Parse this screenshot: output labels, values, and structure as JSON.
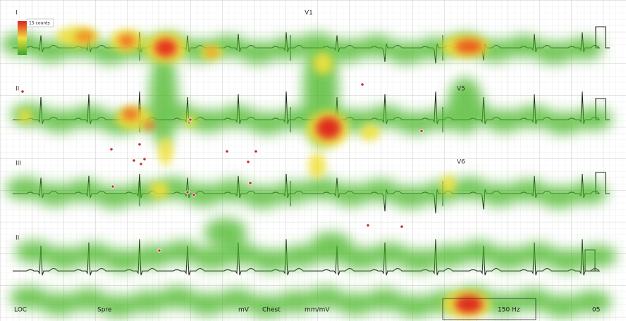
{
  "legend": {
    "label": "15 counts"
  },
  "leads": {
    "i": "I",
    "ii": "II",
    "iii": "III",
    "v1": "V1",
    "v5": "V5",
    "v6": "V6",
    "rhythm": "II"
  },
  "footer": {
    "loc": "LOC",
    "speed": "Spre",
    "limb": "mV",
    "chest": "Chest",
    "chest_unit": "mm/mV",
    "filter": "150 Hz",
    "end": "05"
  }
}
